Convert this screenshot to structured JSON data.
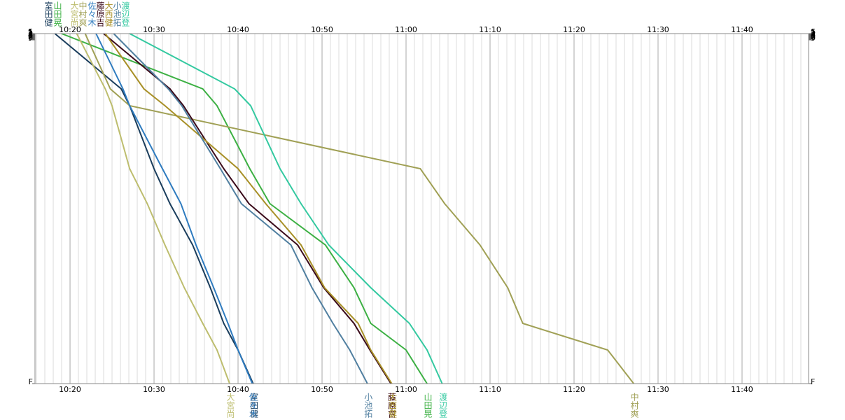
{
  "chart_data": {
    "type": "line",
    "xlim": [
      615.83,
      707.92
    ],
    "xticks": [
      {
        "value": 620,
        "label": "10:20"
      },
      {
        "value": 630,
        "label": "10:30"
      },
      {
        "value": 640,
        "label": "10:40"
      },
      {
        "value": 650,
        "label": "10:50"
      },
      {
        "value": 660,
        "label": "11:00"
      },
      {
        "value": 670,
        "label": "11:10"
      },
      {
        "value": 680,
        "label": "11:20"
      },
      {
        "value": 690,
        "label": "11:30"
      },
      {
        "value": 700,
        "label": "11:40"
      }
    ],
    "minor_grid_step": 1,
    "ylim": [
      0,
      500
    ],
    "yticks": [
      {
        "value": 0,
        "label": "S"
      },
      1,
      2,
      3,
      4,
      5,
      6,
      7,
      8,
      9,
      {
        "value": 500,
        "label": "F"
      }
    ],
    "y": [
      0,
      79,
      103,
      193,
      243,
      302,
      363,
      414,
      452,
      500
    ],
    "series": [
      {
        "name": "室田健",
        "color": "#1a3d5c",
        "values": [
          618.2,
          626.1,
          627.1,
          630.0,
          631.9,
          634.6,
          636.7,
          638.3,
          640.0,
          641.8
        ]
      },
      {
        "name": "山田晃",
        "color": "#3cb043",
        "values": [
          619.0,
          635.8,
          637.5,
          641.4,
          643.8,
          650.4,
          653.8,
          655.8,
          660.0,
          662.5
        ]
      },
      {
        "name": "大宮尚",
        "color": "#bdbd6e",
        "values": [
          620.8,
          624.2,
          625.0,
          627.1,
          629.2,
          631.3,
          633.6,
          635.8,
          637.5,
          639.0
        ]
      },
      {
        "name": "中村爽",
        "color": "#a0a055",
        "values": [
          621.8,
          624.8,
          627.1,
          661.7,
          664.6,
          668.8,
          672.1,
          673.9,
          684.0,
          687.1
        ]
      },
      {
        "name": "佐々木",
        "color": "#2e7bbf",
        "values": [
          623.1,
          626.3,
          627.1,
          631.0,
          633.2,
          635.0,
          637.1,
          638.8,
          640.0,
          641.7
        ]
      },
      {
        "name": "藤原吉",
        "color": "#3a0a1a",
        "values": [
          624.0,
          631.9,
          633.5,
          638.3,
          641.3,
          647.1,
          650.2,
          653.8,
          655.7,
          658.2
        ]
      },
      {
        "name": "大西健",
        "color": "#a89028",
        "values": [
          624.2,
          628.8,
          631.3,
          640.0,
          643.3,
          647.5,
          650.3,
          654.3,
          655.8,
          658.3
        ]
      },
      {
        "name": "小池拓",
        "color": "#507fa0",
        "values": [
          625.2,
          631.7,
          633.3,
          637.9,
          640.4,
          646.3,
          648.8,
          651.3,
          653.3,
          655.4
        ]
      },
      {
        "name": "渡辺登",
        "color": "#33c9a0",
        "values": [
          627.1,
          639.6,
          641.5,
          645.0,
          647.5,
          650.8,
          655.8,
          660.4,
          662.5,
          664.3
        ]
      }
    ]
  }
}
